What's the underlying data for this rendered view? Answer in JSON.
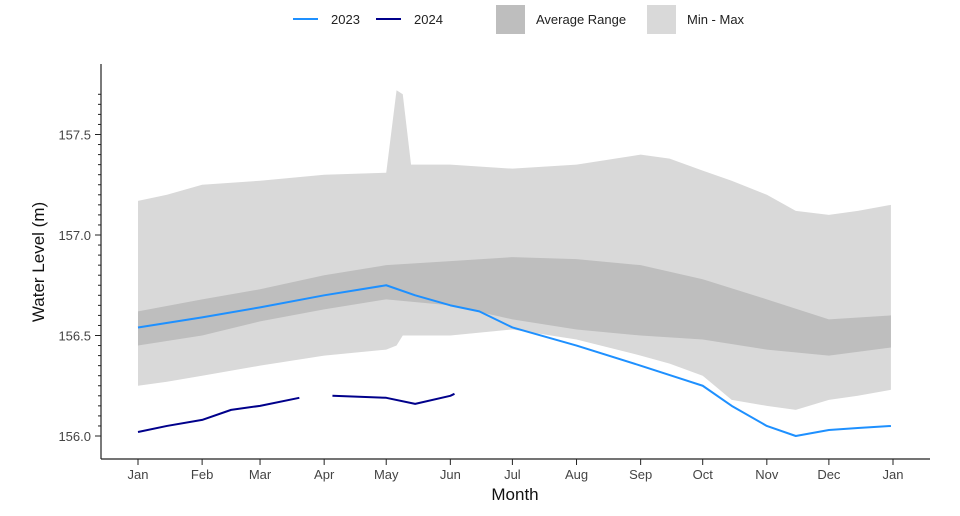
{
  "chart_data": {
    "type": "area",
    "xlabel": "Month",
    "ylabel": "Water Level (m)",
    "ylim": [
      155.92,
      157.82
    ],
    "yticks": [
      156.0,
      156.5,
      157.0,
      157.5
    ],
    "ytick_labels": [
      "156.0",
      "156.5",
      "157.0",
      "157.5"
    ],
    "xtick_labels": [
      "Jan",
      "Feb",
      "Mar",
      "Apr",
      "May",
      "Jun",
      "Jul",
      "Aug",
      "Sep",
      "Oct",
      "Nov",
      "Dec",
      "Jan"
    ],
    "grid": false,
    "legend_position": "top",
    "legend": [
      {
        "name": "2023",
        "kind": "line",
        "color": "#1e90ff"
      },
      {
        "name": "2024",
        "kind": "line",
        "color": "#00008b"
      },
      {
        "name": "Average Range",
        "kind": "fill",
        "color": "#bebebe"
      },
      {
        "name": "Min - Max",
        "kind": "fill",
        "color": "#d9d9d9"
      }
    ],
    "min_max": {
      "x": [
        "01-01",
        "01-15",
        "02-01",
        "03-01",
        "04-01",
        "05-01",
        "05-06",
        "05-09",
        "05-13",
        "06-01",
        "07-01",
        "08-01",
        "09-01",
        "09-15",
        "10-01",
        "10-15",
        "11-01",
        "11-15",
        "12-01",
        "12-15",
        "12-31"
      ],
      "upper": [
        157.17,
        157.2,
        157.25,
        157.27,
        157.3,
        157.31,
        157.72,
        157.7,
        157.35,
        157.35,
        157.33,
        157.35,
        157.4,
        157.38,
        157.32,
        157.27,
        157.2,
        157.12,
        157.1,
        157.12,
        157.15
      ],
      "lower": [
        156.25,
        156.27,
        156.3,
        156.35,
        156.4,
        156.43,
        156.45,
        156.5,
        156.5,
        156.5,
        156.53,
        156.48,
        156.4,
        156.36,
        156.3,
        156.18,
        156.15,
        156.13,
        156.18,
        156.2,
        156.23
      ]
    },
    "average_range": {
      "x": [
        "01-01",
        "02-01",
        "03-01",
        "04-01",
        "05-01",
        "06-01",
        "07-01",
        "08-01",
        "09-01",
        "10-01",
        "11-01",
        "12-01",
        "12-31"
      ],
      "upper": [
        156.62,
        156.68,
        156.73,
        156.8,
        156.85,
        156.87,
        156.89,
        156.88,
        156.85,
        156.78,
        156.68,
        156.58,
        156.6
      ],
      "lower": [
        156.45,
        156.5,
        156.57,
        156.63,
        156.68,
        156.65,
        156.58,
        156.53,
        156.5,
        156.48,
        156.43,
        156.4,
        156.44
      ]
    },
    "series": [
      {
        "name": "2023",
        "color": "#1e90ff",
        "segments": [
          [
            [
              "01-01",
              156.54
            ],
            [
              "02-01",
              156.59
            ],
            [
              "03-01",
              156.64
            ],
            [
              "04-01",
              156.7
            ],
            [
              "05-01",
              156.75
            ],
            [
              "05-15",
              156.7
            ],
            [
              "06-01",
              156.65
            ],
            [
              "06-15",
              156.62
            ],
            [
              "07-01",
              156.54
            ],
            [
              "08-01",
              156.45
            ],
            [
              "09-01",
              156.35
            ],
            [
              "10-01",
              156.25
            ],
            [
              "10-15",
              156.15
            ],
            [
              "11-01",
              156.05
            ],
            [
              "11-15",
              156.0
            ],
            [
              "12-01",
              156.03
            ],
            [
              "12-15",
              156.04
            ],
            [
              "12-31",
              156.05
            ]
          ]
        ]
      },
      {
        "name": "2024",
        "color": "#00008b",
        "segments": [
          [
            [
              "01-01",
              156.02
            ],
            [
              "01-15",
              156.05
            ],
            [
              "02-01",
              156.08
            ],
            [
              "02-15",
              156.13
            ],
            [
              "03-01",
              156.15
            ],
            [
              "03-20",
              156.19
            ]
          ],
          [
            [
              "04-05",
              156.2
            ],
            [
              "05-01",
              156.19
            ],
            [
              "05-15",
              156.16
            ],
            [
              "06-01",
              156.2
            ],
            [
              "06-03",
              156.21
            ]
          ]
        ]
      }
    ]
  }
}
